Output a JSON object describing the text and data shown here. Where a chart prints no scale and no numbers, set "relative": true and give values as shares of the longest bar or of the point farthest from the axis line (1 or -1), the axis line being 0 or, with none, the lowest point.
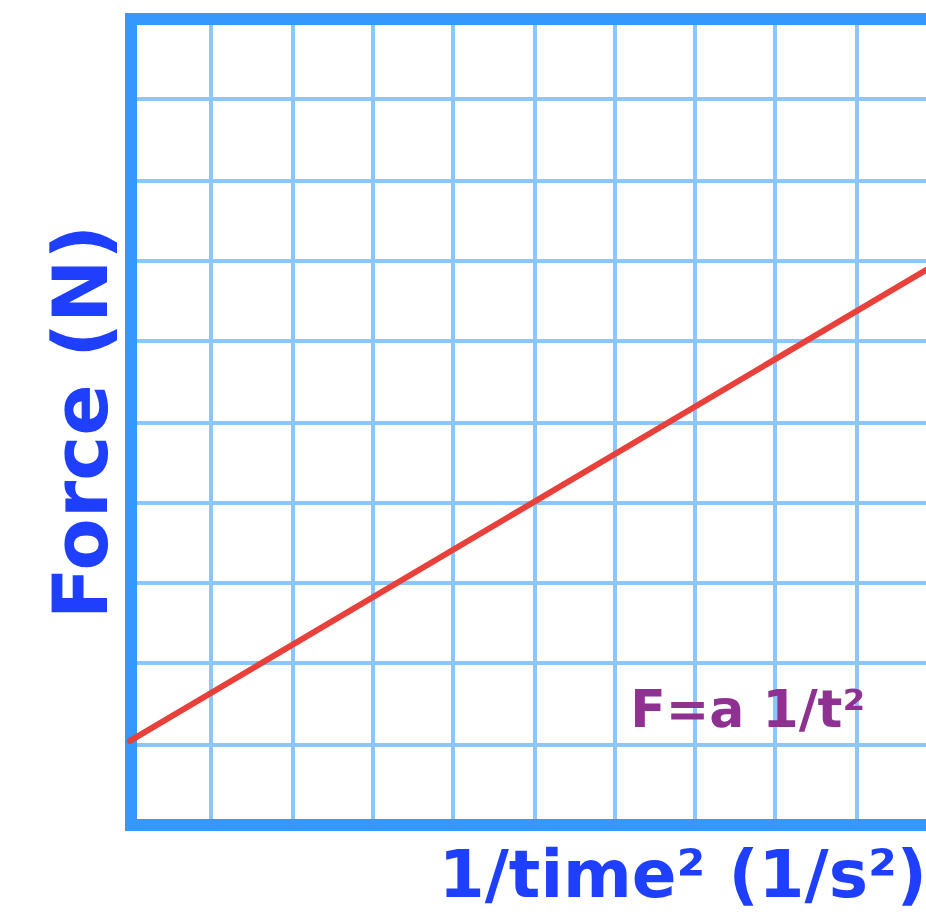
{
  "chart_data": {
    "type": "line",
    "xlabel": "1/time² (1/s²)",
    "ylabel": "Force (N)",
    "annotations": [
      "F=a 1/t²"
    ],
    "categories": [
      null,
      null
    ],
    "values": [
      0.15,
      1
    ],
    "color": "#e8403a",
    "relative": true,
    "grid": true,
    "tick_labels": false
  }
}
